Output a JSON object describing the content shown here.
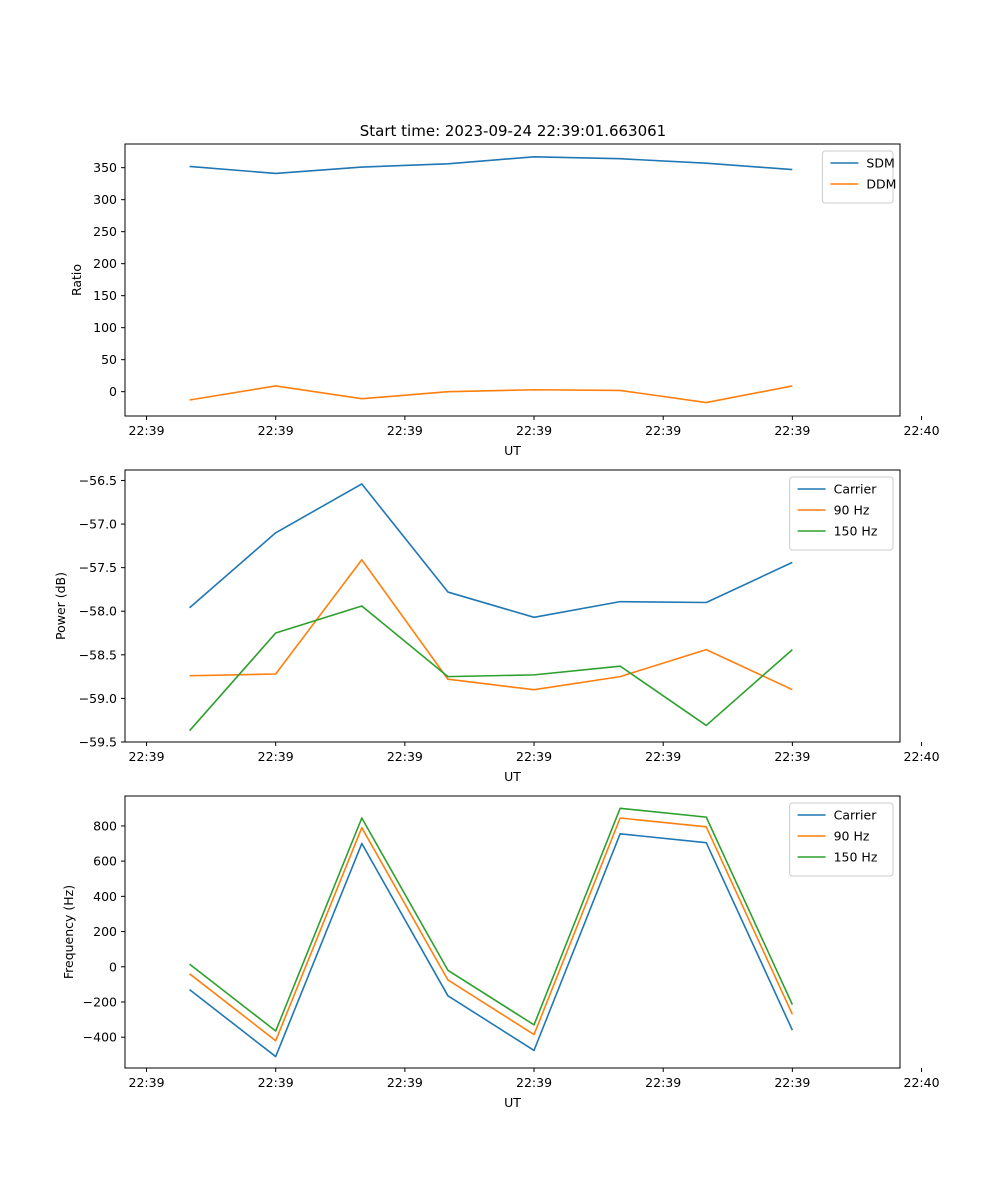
{
  "figure_title": "Start time: 2023-09-24 22:39:01.663061",
  "colors": {
    "blue": "#1f77b4",
    "orange": "#ff7f0e",
    "green": "#2ca02c"
  },
  "chart_data": [
    {
      "type": "line",
      "title": "Start time: 2023-09-24 22:39:01.663061",
      "xlabel": "UT",
      "ylabel": "Ratio",
      "x": [
        1,
        2,
        3,
        4,
        5,
        6,
        7,
        8
      ],
      "xlim": [
        0.25,
        9.25
      ],
      "xticks": [
        0.5,
        2,
        3.5,
        5,
        6.5,
        8,
        9.5
      ],
      "xticklabels": [
        "22:39",
        "22:39",
        "22:39",
        "22:39",
        "22:39",
        "22:39",
        "22:40"
      ],
      "ylim": [
        -38,
        387
      ],
      "yticks": [
        0,
        50,
        100,
        150,
        200,
        250,
        300,
        350
      ],
      "yticklabels": [
        "0",
        "50",
        "100",
        "150",
        "200",
        "250",
        "300",
        "350"
      ],
      "legend_position": "top-right",
      "series": [
        {
          "name": "SDM",
          "color": "#1f77b4",
          "values": [
            352,
            341,
            351,
            356,
            367,
            364,
            357,
            347
          ]
        },
        {
          "name": "DDM",
          "color": "#ff7f0e",
          "values": [
            -13,
            9,
            -11,
            0,
            3,
            2,
            -17,
            9
          ]
        }
      ]
    },
    {
      "type": "line",
      "title": "",
      "xlabel": "UT",
      "ylabel": "Power (dB)",
      "x": [
        1,
        2,
        3,
        4,
        5,
        6,
        7,
        8
      ],
      "xlim": [
        0.25,
        9.25
      ],
      "xticks": [
        0.5,
        2,
        3.5,
        5,
        6.5,
        8,
        9.5
      ],
      "xticklabels": [
        "22:39",
        "22:39",
        "22:39",
        "22:39",
        "22:39",
        "22:39",
        "22:40"
      ],
      "ylim": [
        -59.5,
        -56.38
      ],
      "yticks": [
        -59.5,
        -59.0,
        -58.5,
        -58.0,
        -57.5,
        -57.0,
        -56.5
      ],
      "yticklabels": [
        "−59.5",
        "−59.0",
        "−58.5",
        "−58.0",
        "−57.5",
        "−57.0",
        "−56.5"
      ],
      "legend_position": "top-right",
      "series": [
        {
          "name": "Carrier",
          "color": "#1f77b4",
          "values": [
            -57.96,
            -57.1,
            -56.54,
            -57.78,
            -58.07,
            -57.89,
            -57.9,
            -57.44
          ]
        },
        {
          "name": "90 Hz",
          "color": "#ff7f0e",
          "values": [
            -58.74,
            -58.72,
            -57.41,
            -58.78,
            -58.9,
            -58.75,
            -58.44,
            -58.9
          ]
        },
        {
          "name": "150 Hz",
          "color": "#2ca02c",
          "values": [
            -59.37,
            -58.25,
            -57.94,
            -58.75,
            -58.73,
            -58.63,
            -59.31,
            -58.44
          ]
        }
      ]
    },
    {
      "type": "line",
      "title": "",
      "xlabel": "UT",
      "ylabel": "Frequency (Hz)",
      "x": [
        1,
        2,
        3,
        4,
        5,
        6,
        7,
        8
      ],
      "xlim": [
        0.25,
        9.25
      ],
      "xticks": [
        0.5,
        2,
        3.5,
        5,
        6.5,
        8,
        9.5
      ],
      "xticklabels": [
        "22:39",
        "22:39",
        "22:39",
        "22:39",
        "22:39",
        "22:39",
        "22:40"
      ],
      "ylim": [
        -575,
        970
      ],
      "yticks": [
        -400,
        -200,
        0,
        200,
        400,
        600,
        800
      ],
      "yticklabels": [
        "−400",
        "−200",
        "0",
        "200",
        "400",
        "600",
        "800"
      ],
      "legend_position": "top-right",
      "series": [
        {
          "name": "Carrier",
          "color": "#1f77b4",
          "values": [
            -130,
            -510,
            700,
            -165,
            -475,
            755,
            705,
            -360
          ]
        },
        {
          "name": "90 Hz",
          "color": "#ff7f0e",
          "values": [
            -40,
            -420,
            790,
            -75,
            -385,
            845,
            795,
            -270
          ]
        },
        {
          "name": "150 Hz",
          "color": "#2ca02c",
          "values": [
            15,
            -365,
            845,
            -20,
            -330,
            900,
            850,
            -215
          ]
        }
      ]
    }
  ]
}
